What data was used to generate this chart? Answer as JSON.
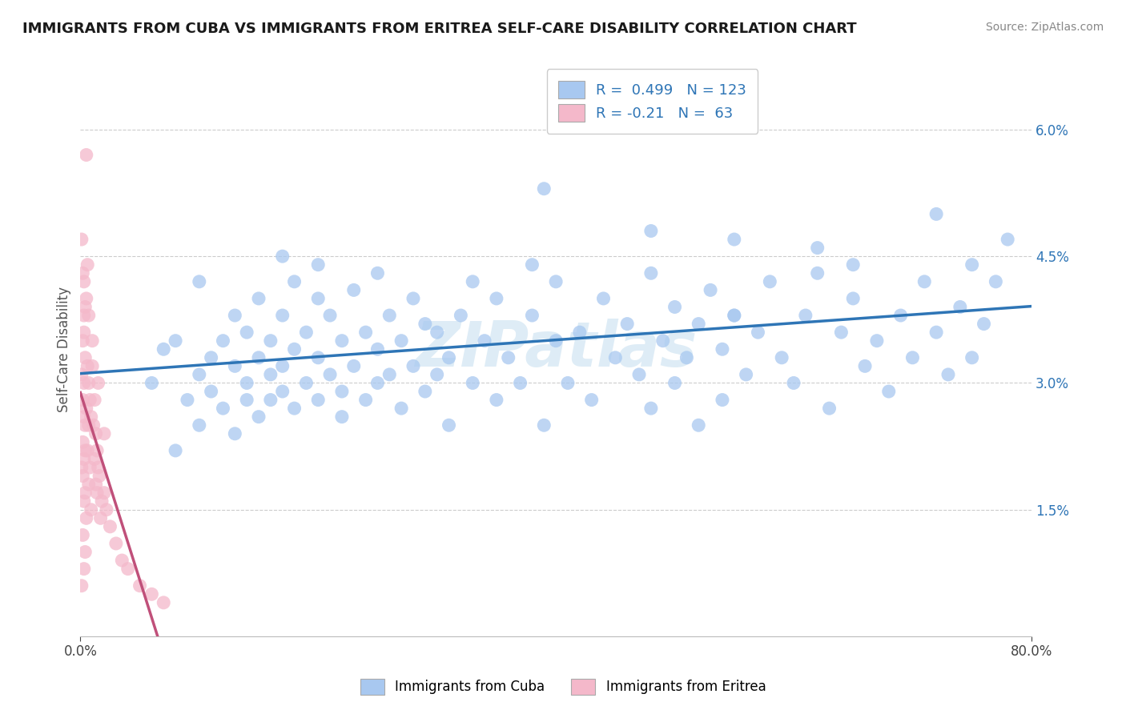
{
  "title": "IMMIGRANTS FROM CUBA VS IMMIGRANTS FROM ERITREA SELF-CARE DISABILITY CORRELATION CHART",
  "source": "Source: ZipAtlas.com",
  "ylabel": "Self-Care Disability",
  "y_ticks": [
    "1.5%",
    "3.0%",
    "4.5%",
    "6.0%"
  ],
  "y_tick_vals": [
    0.015,
    0.03,
    0.045,
    0.06
  ],
  "x_lim": [
    0.0,
    0.8
  ],
  "y_lim": [
    0.0,
    0.068
  ],
  "cuba_color": "#a8c8f0",
  "cuba_color_dark": "#2e75b6",
  "eritrea_color": "#f4b8ca",
  "eritrea_color_dark": "#c0507a",
  "cuba_R": 0.499,
  "cuba_N": 123,
  "eritrea_R": -0.21,
  "eritrea_N": 63,
  "watermark": "ZIPatlas",
  "legend_label_cuba": "Immigrants from Cuba",
  "legend_label_eritrea": "Immigrants from Eritrea",
  "cuba_scatter": [
    [
      0.06,
      0.03
    ],
    [
      0.07,
      0.034
    ],
    [
      0.08,
      0.022
    ],
    [
      0.09,
      0.028
    ],
    [
      0.1,
      0.025
    ],
    [
      0.1,
      0.031
    ],
    [
      0.11,
      0.033
    ],
    [
      0.11,
      0.029
    ],
    [
      0.12,
      0.027
    ],
    [
      0.12,
      0.035
    ],
    [
      0.13,
      0.024
    ],
    [
      0.13,
      0.032
    ],
    [
      0.13,
      0.038
    ],
    [
      0.14,
      0.028
    ],
    [
      0.14,
      0.036
    ],
    [
      0.14,
      0.03
    ],
    [
      0.15,
      0.026
    ],
    [
      0.15,
      0.033
    ],
    [
      0.15,
      0.04
    ],
    [
      0.16,
      0.031
    ],
    [
      0.16,
      0.028
    ],
    [
      0.16,
      0.035
    ],
    [
      0.17,
      0.029
    ],
    [
      0.17,
      0.038
    ],
    [
      0.17,
      0.032
    ],
    [
      0.18,
      0.027
    ],
    [
      0.18,
      0.034
    ],
    [
      0.18,
      0.042
    ],
    [
      0.19,
      0.03
    ],
    [
      0.19,
      0.036
    ],
    [
      0.2,
      0.028
    ],
    [
      0.2,
      0.033
    ],
    [
      0.2,
      0.04
    ],
    [
      0.21,
      0.031
    ],
    [
      0.21,
      0.038
    ],
    [
      0.22,
      0.026
    ],
    [
      0.22,
      0.035
    ],
    [
      0.22,
      0.029
    ],
    [
      0.23,
      0.032
    ],
    [
      0.23,
      0.041
    ],
    [
      0.24,
      0.028
    ],
    [
      0.24,
      0.036
    ],
    [
      0.25,
      0.03
    ],
    [
      0.25,
      0.034
    ],
    [
      0.25,
      0.043
    ],
    [
      0.26,
      0.031
    ],
    [
      0.26,
      0.038
    ],
    [
      0.27,
      0.027
    ],
    [
      0.27,
      0.035
    ],
    [
      0.28,
      0.032
    ],
    [
      0.28,
      0.04
    ],
    [
      0.29,
      0.029
    ],
    [
      0.29,
      0.037
    ],
    [
      0.3,
      0.031
    ],
    [
      0.3,
      0.036
    ],
    [
      0.31,
      0.025
    ],
    [
      0.31,
      0.033
    ],
    [
      0.32,
      0.038
    ],
    [
      0.33,
      0.03
    ],
    [
      0.33,
      0.042
    ],
    [
      0.34,
      0.035
    ],
    [
      0.35,
      0.028
    ],
    [
      0.35,
      0.04
    ],
    [
      0.36,
      0.033
    ],
    [
      0.37,
      0.03
    ],
    [
      0.38,
      0.038
    ],
    [
      0.39,
      0.025
    ],
    [
      0.4,
      0.035
    ],
    [
      0.4,
      0.042
    ],
    [
      0.41,
      0.03
    ],
    [
      0.42,
      0.036
    ],
    [
      0.43,
      0.028
    ],
    [
      0.44,
      0.04
    ],
    [
      0.45,
      0.033
    ],
    [
      0.46,
      0.037
    ],
    [
      0.47,
      0.031
    ],
    [
      0.48,
      0.027
    ],
    [
      0.48,
      0.043
    ],
    [
      0.49,
      0.035
    ],
    [
      0.5,
      0.03
    ],
    [
      0.5,
      0.039
    ],
    [
      0.51,
      0.033
    ],
    [
      0.52,
      0.025
    ],
    [
      0.52,
      0.037
    ],
    [
      0.53,
      0.041
    ],
    [
      0.54,
      0.028
    ],
    [
      0.54,
      0.034
    ],
    [
      0.55,
      0.038
    ],
    [
      0.56,
      0.031
    ],
    [
      0.57,
      0.036
    ],
    [
      0.58,
      0.042
    ],
    [
      0.59,
      0.033
    ],
    [
      0.6,
      0.03
    ],
    [
      0.61,
      0.038
    ],
    [
      0.62,
      0.043
    ],
    [
      0.63,
      0.027
    ],
    [
      0.64,
      0.036
    ],
    [
      0.65,
      0.04
    ],
    [
      0.66,
      0.032
    ],
    [
      0.67,
      0.035
    ],
    [
      0.68,
      0.029
    ],
    [
      0.69,
      0.038
    ],
    [
      0.7,
      0.033
    ],
    [
      0.71,
      0.042
    ],
    [
      0.72,
      0.036
    ],
    [
      0.73,
      0.031
    ],
    [
      0.74,
      0.039
    ],
    [
      0.75,
      0.033
    ],
    [
      0.76,
      0.037
    ],
    [
      0.77,
      0.042
    ],
    [
      0.39,
      0.053
    ],
    [
      0.72,
      0.05
    ],
    [
      0.78,
      0.047
    ],
    [
      0.1,
      0.042
    ],
    [
      0.55,
      0.047
    ],
    [
      0.62,
      0.046
    ],
    [
      0.48,
      0.048
    ],
    [
      0.38,
      0.044
    ],
    [
      0.17,
      0.045
    ],
    [
      0.2,
      0.044
    ],
    [
      0.65,
      0.044
    ],
    [
      0.75,
      0.044
    ],
    [
      0.08,
      0.035
    ],
    [
      0.55,
      0.038
    ]
  ],
  "eritrea_scatter": [
    [
      0.005,
      0.057
    ],
    [
      0.002,
      0.043
    ],
    [
      0.003,
      0.042
    ],
    [
      0.001,
      0.047
    ],
    [
      0.004,
      0.039
    ],
    [
      0.006,
      0.044
    ],
    [
      0.003,
      0.038
    ],
    [
      0.002,
      0.035
    ],
    [
      0.004,
      0.033
    ],
    [
      0.001,
      0.031
    ],
    [
      0.003,
      0.03
    ],
    [
      0.002,
      0.028
    ],
    [
      0.005,
      0.027
    ],
    [
      0.003,
      0.026
    ],
    [
      0.004,
      0.025
    ],
    [
      0.002,
      0.023
    ],
    [
      0.004,
      0.022
    ],
    [
      0.003,
      0.021
    ],
    [
      0.001,
      0.02
    ],
    [
      0.002,
      0.019
    ],
    [
      0.004,
      0.017
    ],
    [
      0.003,
      0.016
    ],
    [
      0.005,
      0.014
    ],
    [
      0.002,
      0.012
    ],
    [
      0.004,
      0.01
    ],
    [
      0.003,
      0.008
    ],
    [
      0.001,
      0.006
    ],
    [
      0.006,
      0.032
    ],
    [
      0.007,
      0.03
    ],
    [
      0.007,
      0.025
    ],
    [
      0.008,
      0.028
    ],
    [
      0.006,
      0.022
    ],
    [
      0.009,
      0.026
    ],
    [
      0.008,
      0.02
    ],
    [
      0.007,
      0.018
    ],
    [
      0.009,
      0.015
    ],
    [
      0.01,
      0.032
    ],
    [
      0.012,
      0.028
    ],
    [
      0.011,
      0.025
    ],
    [
      0.013,
      0.024
    ],
    [
      0.012,
      0.021
    ],
    [
      0.014,
      0.022
    ],
    [
      0.013,
      0.018
    ],
    [
      0.015,
      0.02
    ],
    [
      0.014,
      0.017
    ],
    [
      0.016,
      0.019
    ],
    [
      0.018,
      0.016
    ],
    [
      0.017,
      0.014
    ],
    [
      0.02,
      0.017
    ],
    [
      0.022,
      0.015
    ],
    [
      0.025,
      0.013
    ],
    [
      0.03,
      0.011
    ],
    [
      0.035,
      0.009
    ],
    [
      0.04,
      0.008
    ],
    [
      0.05,
      0.006
    ],
    [
      0.06,
      0.005
    ],
    [
      0.07,
      0.004
    ],
    [
      0.003,
      0.036
    ],
    [
      0.005,
      0.04
    ],
    [
      0.007,
      0.038
    ],
    [
      0.01,
      0.035
    ],
    [
      0.015,
      0.03
    ],
    [
      0.02,
      0.024
    ]
  ]
}
